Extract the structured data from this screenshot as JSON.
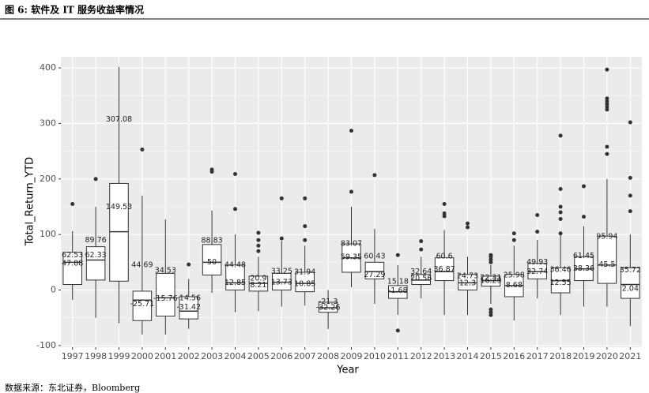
{
  "chart_data": {
    "type": "box",
    "title": "图 6: 软件及 IT 服务收益率情况",
    "source": "数据来源：东北证券，Bloomberg",
    "x_label": "Year",
    "y_label": "Total_Return_YTD",
    "categories": [
      "1997",
      "1998",
      "1999",
      "2000",
      "2001",
      "2002",
      "2003",
      "2004",
      "2005",
      "2006",
      "2007",
      "2008",
      "2009",
      "2010",
      "2011",
      "2012",
      "2013",
      "2014",
      "2015",
      "2016",
      "2017",
      "2018",
      "2019",
      "2020",
      "2021"
    ],
    "low": [
      -18,
      -50,
      -60,
      -80,
      -80,
      -70,
      -5,
      -40,
      -38,
      -30,
      -28,
      -70,
      5,
      -25,
      -45,
      -15,
      -45,
      -45,
      -25,
      -55,
      -15,
      -45,
      -30,
      -30,
      -65
    ],
    "q1": [
      10,
      18,
      16,
      -55,
      -47,
      -52,
      27,
      0,
      -2,
      0,
      -3,
      -40,
      32,
      20,
      -15,
      10,
      17,
      0,
      7,
      -12,
      20,
      -5,
      17,
      12,
      -15
    ],
    "median": [
      50,
      54,
      105,
      -18,
      -14,
      -38,
      50,
      13,
      12,
      14,
      12,
      -32,
      58,
      33,
      -3,
      18,
      33,
      13,
      17,
      8,
      33,
      17,
      38,
      45,
      10
    ],
    "q3": [
      68,
      78,
      192,
      -2,
      30,
      -12,
      82,
      45,
      25,
      30,
      32,
      -22,
      83,
      50,
      8,
      28,
      58,
      28,
      25,
      28,
      48,
      40,
      60,
      97,
      40
    ],
    "high": [
      106,
      150,
      402,
      170,
      127,
      20,
      143,
      100,
      60,
      88,
      80,
      0,
      150,
      110,
      45,
      60,
      108,
      60,
      45,
      80,
      90,
      100,
      115,
      200,
      100
    ],
    "outliers": [
      [
        155
      ],
      [
        200
      ],
      [],
      [
        253
      ],
      [],
      [
        46
      ],
      [
        213,
        217
      ],
      [
        146,
        209
      ],
      [
        70,
        80,
        90,
        103
      ],
      [
        93,
        165
      ],
      [
        90,
        115,
        165
      ],
      [],
      [
        177,
        287
      ],
      [
        207
      ],
      [
        63,
        -73
      ],
      [
        73,
        88
      ],
      [
        133,
        138,
        155
      ],
      [
        113,
        120
      ],
      [
        50,
        55,
        60,
        63,
        -35,
        -40,
        -45
      ],
      [
        90,
        102
      ],
      [
        105,
        135
      ],
      [
        102,
        128,
        140,
        150,
        182,
        278
      ],
      [
        132,
        187
      ],
      [
        245,
        258,
        325,
        330,
        335,
        340,
        345,
        397
      ],
      [
        142,
        170,
        202,
        302
      ]
    ],
    "labels": [
      [
        62.53,
        47.88
      ],
      [
        89.76,
        62.33
      ],
      [
        307.08,
        149.53
      ],
      [
        44.69,
        -25.71
      ],
      [
        34.53,
        -15.76
      ],
      [
        -14.56,
        -31.42
      ],
      [
        88.83,
        50
      ],
      [
        44.48,
        12.85
      ],
      [
        20.9,
        8.21
      ],
      [
        33.25,
        13.73
      ],
      [
        31.94,
        10.85
      ],
      [
        -21.3,
        -32.26
      ],
      [
        83.07,
        59.35
      ],
      [
        60.43,
        27.29
      ],
      [
        15.18,
        -1.68
      ],
      [
        32.64,
        20.56
      ],
      [
        60.6,
        36.87
      ],
      [
        24.73,
        12.3
      ],
      [
        22.31,
        16.29
      ],
      [
        25.98,
        8.68
      ],
      [
        49.93,
        32.74
      ],
      [
        36.46,
        12.55
      ],
      [
        61.45,
        38.36
      ],
      [
        95.94,
        45.5
      ],
      [
        35.72,
        2.04
      ]
    ],
    "ylim": [
      -103,
      420
    ],
    "yticks": [
      -100,
      0,
      100,
      200,
      300,
      400
    ],
    "grid": true,
    "box_color": "#ffffff",
    "outlier_color": "#333333",
    "panel_color": "#ebebeb"
  }
}
